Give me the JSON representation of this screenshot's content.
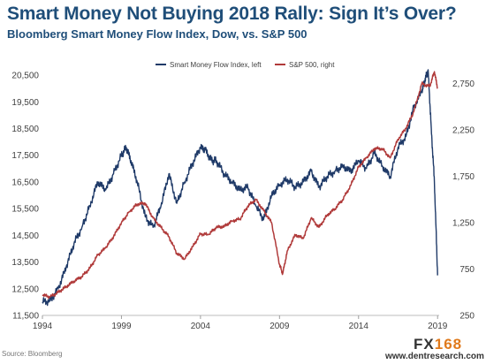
{
  "title": "Smart Money Not Buying 2018 Rally: Sign It’s Over?",
  "subtitle": "Bloomberg Smart Money Flow Index, Dow, vs. S&P 500",
  "source": "Source: Bloomberg",
  "logo": {
    "prefix": "FX",
    "suffix": "168"
  },
  "website": "www.dentresearch.com",
  "colors": {
    "smart_money": "#1f3a68",
    "sp500": "#b03a3a",
    "axis": "#404040"
  },
  "chart_data": {
    "type": "line",
    "legend_position": "top-center",
    "grid": false,
    "x_ticks": [
      "1994",
      "1999",
      "2004",
      "2009",
      "2014",
      "2019"
    ],
    "x_range": [
      1994,
      2019.1
    ],
    "y_left": {
      "ticks": [
        "11,500",
        "12,500",
        "13,500",
        "14,500",
        "15,500",
        "16,500",
        "17,500",
        "18,500",
        "19,500",
        "20,500"
      ],
      "range": [
        11500,
        20700
      ]
    },
    "y_right": {
      "ticks": [
        "250",
        "750",
        "1,250",
        "1,750",
        "2,250",
        "2,750"
      ],
      "range": [
        250,
        2900
      ]
    },
    "series": [
      {
        "name": "Smart Money Flow Index, left",
        "axis": "left",
        "color": "#1f3a68",
        "x": [
          1994.0,
          1994.5,
          1995.0,
          1995.5,
          1996.0,
          1996.5,
          1997.0,
          1997.5,
          1998.0,
          1998.5,
          1999.0,
          1999.3,
          1999.6,
          2000.0,
          2000.5,
          2001.0,
          2001.5,
          2002.0,
          2002.5,
          2003.0,
          2003.5,
          2004.0,
          2004.3,
          2004.7,
          2005.0,
          2005.5,
          2006.0,
          2006.5,
          2007.0,
          2007.5,
          2008.0,
          2008.5,
          2009.0,
          2009.5,
          2010.0,
          2010.5,
          2011.0,
          2011.5,
          2012.0,
          2012.5,
          2013.0,
          2013.5,
          2014.0,
          2014.5,
          2015.0,
          2015.5,
          2016.0,
          2016.5,
          2017.0,
          2017.5,
          2018.0,
          2018.2,
          2018.4,
          2018.6,
          2018.8,
          2019.0
        ],
        "values": [
          12000,
          12050,
          12500,
          13300,
          14200,
          14800,
          15600,
          16500,
          16200,
          16800,
          17500,
          17800,
          17300,
          16500,
          15200,
          14800,
          15600,
          16800,
          15700,
          16500,
          17200,
          17800,
          17700,
          17300,
          17300,
          16800,
          16500,
          16200,
          16300,
          15600,
          15100,
          16000,
          16400,
          16600,
          16300,
          16500,
          16900,
          16300,
          16700,
          16900,
          17100,
          16900,
          17300,
          17000,
          17600,
          17100,
          16700,
          17800,
          18200,
          19300,
          19900,
          20300,
          20700,
          18500,
          16500,
          13000
        ]
      },
      {
        "name": "S&P 500, right",
        "axis": "right",
        "color": "#b03a3a",
        "x": [
          1994.0,
          1994.5,
          1995.0,
          1995.5,
          1996.0,
          1996.5,
          1997.0,
          1997.5,
          1998.0,
          1998.5,
          1999.0,
          1999.5,
          2000.0,
          2000.5,
          2001.0,
          2001.5,
          2002.0,
          2002.5,
          2003.0,
          2003.5,
          2004.0,
          2004.5,
          2005.0,
          2005.5,
          2006.0,
          2006.5,
          2007.0,
          2007.5,
          2008.0,
          2008.5,
          2009.0,
          2009.2,
          2009.5,
          2010.0,
          2010.5,
          2011.0,
          2011.5,
          2012.0,
          2012.5,
          2013.0,
          2013.5,
          2014.0,
          2014.5,
          2015.0,
          2015.5,
          2016.0,
          2016.5,
          2017.0,
          2017.5,
          2018.0,
          2018.5,
          2018.8,
          2019.0
        ],
        "values": [
          470,
          450,
          500,
          560,
          620,
          670,
          760,
          900,
          980,
          1100,
          1250,
          1370,
          1450,
          1460,
          1300,
          1200,
          1100,
          920,
          860,
          990,
          1130,
          1120,
          1200,
          1210,
          1270,
          1290,
          1430,
          1500,
          1380,
          1250,
          800,
          700,
          950,
          1120,
          1080,
          1300,
          1200,
          1330,
          1400,
          1500,
          1650,
          1850,
          1950,
          2050,
          2050,
          1950,
          2150,
          2270,
          2450,
          2750,
          2720,
          2880,
          2700
        ]
      }
    ]
  }
}
